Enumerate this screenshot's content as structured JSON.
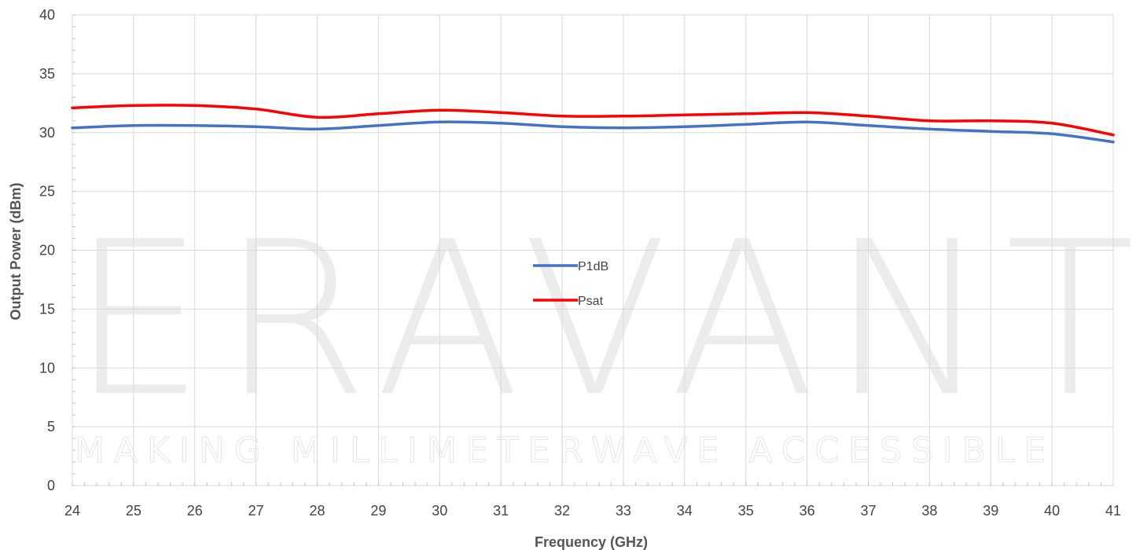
{
  "watermark": {
    "brand": "ERAVANT",
    "tagline": "MAKING MILLIMETERWAVE ACCESSIBLE"
  },
  "colors": {
    "p1db": "#4472C4",
    "psat": "#FF0000",
    "grid": "#d9d9d9"
  },
  "chart_data": {
    "type": "line",
    "title": "",
    "xlabel": "Frequency (GHz)",
    "ylabel": "Output Power (dBm)",
    "xlim": [
      24,
      41
    ],
    "ylim": [
      0,
      40
    ],
    "x_ticks": [
      "24",
      "25",
      "26",
      "27",
      "28",
      "29",
      "30",
      "31",
      "32",
      "33",
      "34",
      "35",
      "36",
      "37",
      "38",
      "39",
      "40",
      "41"
    ],
    "y_ticks": [
      "0",
      "5",
      "10",
      "15",
      "20",
      "25",
      "30",
      "35",
      "40"
    ],
    "grid": true,
    "legend_position": "center",
    "x": [
      24,
      25,
      26,
      27,
      28,
      29,
      30,
      31,
      32,
      33,
      34,
      35,
      36,
      37,
      38,
      39,
      40,
      41
    ],
    "series": [
      {
        "name": "P1dB",
        "color": "#4472C4",
        "values": [
          30.4,
          30.6,
          30.6,
          30.5,
          30.3,
          30.6,
          30.9,
          30.8,
          30.5,
          30.4,
          30.5,
          30.7,
          30.9,
          30.6,
          30.3,
          30.1,
          29.9,
          29.2
        ]
      },
      {
        "name": "Psat",
        "color": "#FF0000",
        "values": [
          32.1,
          32.3,
          32.3,
          32.0,
          31.3,
          31.6,
          31.9,
          31.7,
          31.4,
          31.4,
          31.5,
          31.6,
          31.7,
          31.4,
          31.0,
          31.0,
          30.8,
          29.8
        ]
      }
    ]
  }
}
